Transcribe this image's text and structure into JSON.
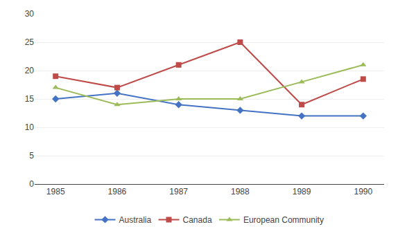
{
  "chart_data": {
    "type": "line",
    "categories": [
      "1985",
      "1986",
      "1987",
      "1988",
      "1989",
      "1990"
    ],
    "series": [
      {
        "name": "Australia",
        "color": "#4472C4",
        "marker": "diamond",
        "values": [
          15,
          16,
          14,
          13,
          12,
          12
        ]
      },
      {
        "name": "Canada",
        "color": "#BE4B48",
        "marker": "square",
        "values": [
          19,
          17,
          21,
          25,
          14,
          18.5
        ]
      },
      {
        "name": "European Community",
        "color": "#9BBB59",
        "marker": "triangle-up",
        "values": [
          17,
          14,
          15,
          15,
          18,
          21
        ]
      }
    ],
    "ylim": [
      0,
      30
    ],
    "yticks": [
      0,
      5,
      10,
      15,
      20,
      25,
      30
    ],
    "grid": true,
    "legend": "bottom"
  }
}
